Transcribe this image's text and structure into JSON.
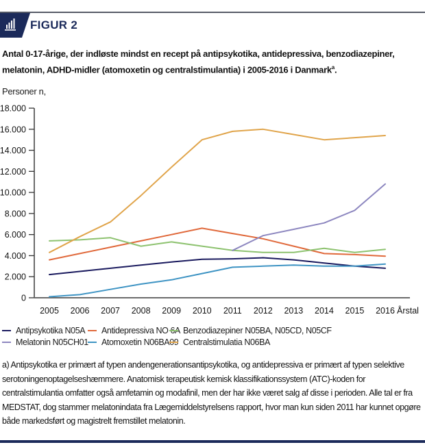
{
  "header": {
    "figure_label": "FIGUR 2",
    "icon": "bar-chart-icon",
    "accent_color": "#1b2a5a"
  },
  "caption": {
    "text": "Antal 0-17-årige, der indløste mindst en recept på antipsykotika, antidepressiva, benzodiazepiner, melatonin, ADHD-midler (atomoxetin og centralstimulantia) i 2005-2016 i Danmark",
    "superscript": "a"
  },
  "chart_data": {
    "type": "line",
    "title": "",
    "ylabel": "Personer n,",
    "xlabel": "Årstal",
    "ylim": [
      0,
      18000
    ],
    "yticks": [
      0,
      2000,
      4000,
      6000,
      8000,
      10000,
      12000,
      14000,
      16000,
      18000
    ],
    "ytick_labels": [
      "0",
      "2.000",
      "4.000",
      "6.000",
      "8.000",
      "10.000",
      "12.000",
      "14.000",
      "16.000",
      "18.000"
    ],
    "x": [
      "2005",
      "2006",
      "2007",
      "2008",
      "2009",
      "2010",
      "2011",
      "2012",
      "2013",
      "2014",
      "2015",
      "2016"
    ],
    "grid": false,
    "legend_position": "bottom",
    "series": [
      {
        "name": "Antipsykotika N05A",
        "color": "#1a1a5e",
        "values": [
          2200,
          2500,
          2800,
          3100,
          3400,
          3650,
          3700,
          3800,
          3600,
          3300,
          3000,
          2800
        ]
      },
      {
        "name": "Antidepressiva NO 6A",
        "color": "#e0683a",
        "values": [
          3600,
          4200,
          4800,
          5400,
          6000,
          6600,
          6100,
          5600,
          4900,
          4200,
          4100,
          3950
        ]
      },
      {
        "name": "Benzodiazepiner N05BA, N05CD, N05CF",
        "color": "#8dc26f",
        "values": [
          5400,
          5500,
          5700,
          4900,
          5300,
          4900,
          4500,
          4300,
          4300,
          4700,
          4300,
          4600
        ]
      },
      {
        "name": "Melatonin N05CH01",
        "color": "#8c86bf",
        "values": [
          null,
          null,
          null,
          null,
          null,
          null,
          4500,
          5900,
          6500,
          7100,
          8300,
          10800
        ]
      },
      {
        "name": "Atomoxetin N06BA09",
        "color": "#3d93c3",
        "values": [
          100,
          300,
          800,
          1300,
          1700,
          2300,
          2900,
          3000,
          3100,
          3000,
          3000,
          3200
        ]
      },
      {
        "name": "Centralstimulatia N06BA",
        "color": "#e0a44a",
        "values": [
          4300,
          5800,
          7200,
          9700,
          12400,
          15000,
          15800,
          16000,
          15500,
          15000,
          15200,
          15400
        ]
      }
    ]
  },
  "footnote": "a) Antipsykotika er primært af typen andengenerationsantipsykotika, og antidepressiva er primært af typen selektive serotoningenoptagelseshæmmere. Anatomisk terapeutisk kemisk klassifikationssystem (ATC)-koden for centralstimulantia omfatter også amfetamin og modafinil, men der har ikke været salg af disse i perioden. Alle tal er fra MEDSTAT, dog stammer melatonindata fra Lægemiddelstyrelsens rapport, hvor man kun siden 2011 har kunnet opgøre både markedsført og magistrelt fremstillet melatonin."
}
